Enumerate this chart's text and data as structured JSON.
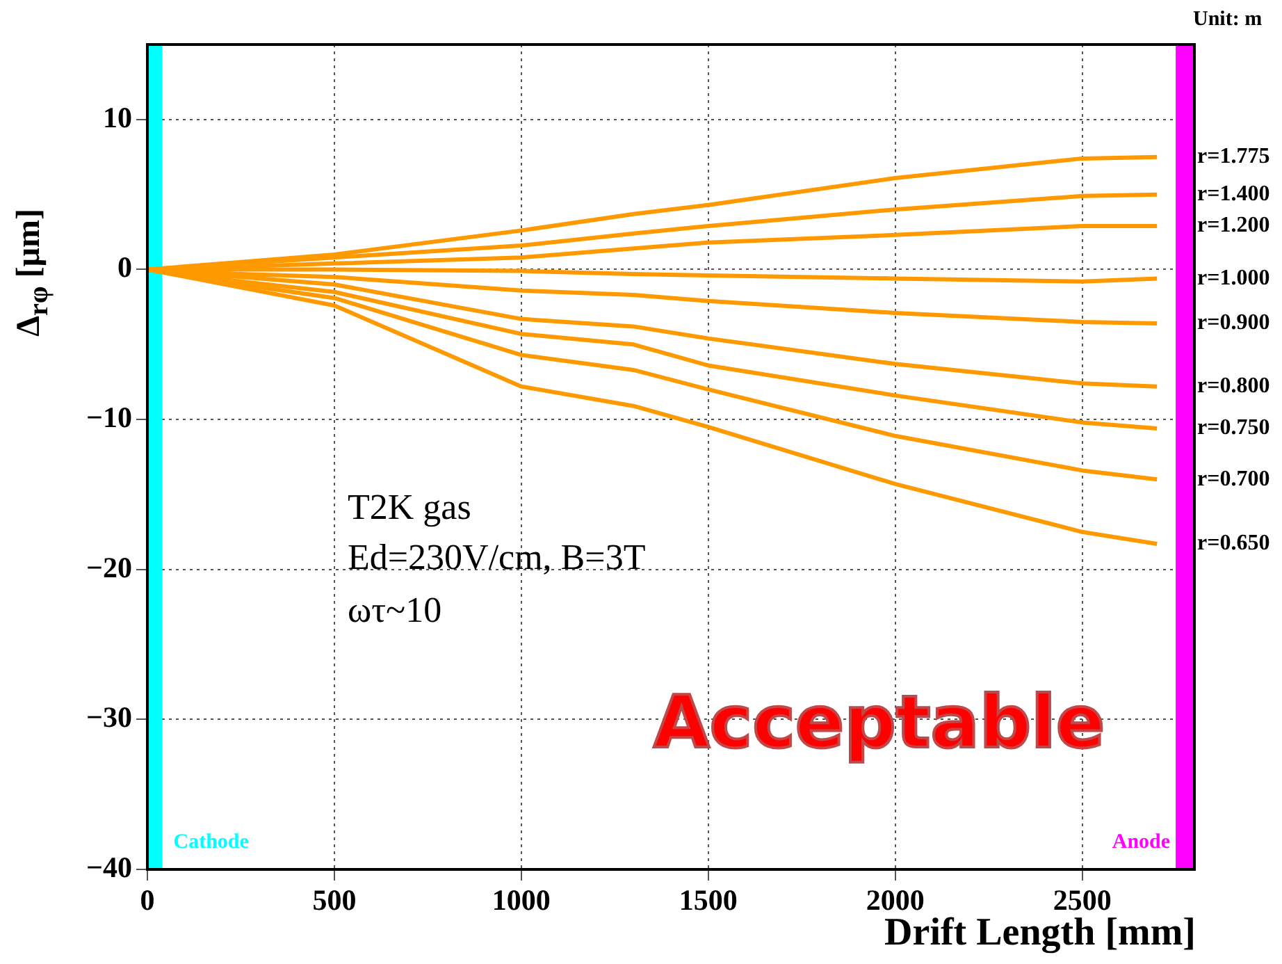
{
  "chart_data": {
    "type": "line",
    "xlabel": "Drift Length [mm]",
    "ylabel": "Δ$_{rφ}$ [μm]",
    "x": [
      0,
      250,
      500,
      1000,
      1300,
      1500,
      2000,
      2500,
      2700
    ],
    "series": [
      {
        "name": "r=1.775",
        "color": "#ff9900",
        "values": [
          0,
          0.5,
          1.0,
          2.6,
          3.7,
          4.3,
          6.1,
          7.4,
          7.5
        ]
      },
      {
        "name": "r=1.400",
        "color": "#ff9900",
        "values": [
          0,
          0.4,
          0.8,
          1.6,
          2.4,
          2.9,
          4.0,
          4.9,
          5.0
        ]
      },
      {
        "name": "r=1.200",
        "color": "#ff9900",
        "values": [
          0,
          0.2,
          0.4,
          0.8,
          1.4,
          1.8,
          2.3,
          2.9,
          2.9
        ]
      },
      {
        "name": "r=1.000",
        "color": "#ff9900",
        "values": [
          0,
          0,
          0,
          -0.1,
          -0.3,
          -0.4,
          -0.6,
          -0.8,
          -0.6
        ]
      },
      {
        "name": "r=0.900",
        "color": "#ff9900",
        "values": [
          0,
          -0.3,
          -0.5,
          -1.4,
          -1.7,
          -2.1,
          -2.9,
          -3.5,
          -3.6
        ]
      },
      {
        "name": "r=0.800",
        "color": "#ff9900",
        "values": [
          0,
          -0.5,
          -1.0,
          -3.3,
          -3.8,
          -4.6,
          -6.3,
          -7.6,
          -7.8
        ]
      },
      {
        "name": "r=0.750",
        "color": "#ff9900",
        "values": [
          0,
          -0.8,
          -1.5,
          -4.3,
          -5.0,
          -6.4,
          -8.4,
          -10.2,
          -10.6
        ]
      },
      {
        "name": "r=0.700",
        "color": "#ff9900",
        "values": [
          0,
          -1.0,
          -1.9,
          -5.7,
          -6.7,
          -8.0,
          -11.1,
          -13.4,
          -14.0
        ]
      },
      {
        "name": "r=0.650",
        "color": "#ff9900",
        "values": [
          0,
          -1.2,
          -2.4,
          -7.8,
          -9.1,
          -10.5,
          -14.3,
          -17.5,
          -18.3
        ]
      }
    ],
    "xlim": [
      0,
      2800
    ],
    "xticks": [
      0,
      500,
      1000,
      1500,
      2000,
      2500
    ],
    "ylim": [
      -40,
      15
    ],
    "yticks": [
      -40,
      -30,
      -20,
      -10,
      0,
      10
    ],
    "grid": true,
    "legend": false,
    "marker": "none",
    "line_style": "solid",
    "bands": [
      {
        "axis": "x",
        "from": 0,
        "to": 40,
        "label": "Cathode",
        "color": "#00ffff"
      },
      {
        "axis": "x",
        "from": 2750,
        "to": 2800,
        "label": "Anode",
        "color": "#ff00ff"
      }
    ],
    "annotations": [
      "Unit: m",
      "T2K gas",
      "Ed=230V/cm, B=3T",
      "ωτ~10",
      "Acceptable"
    ]
  }
}
